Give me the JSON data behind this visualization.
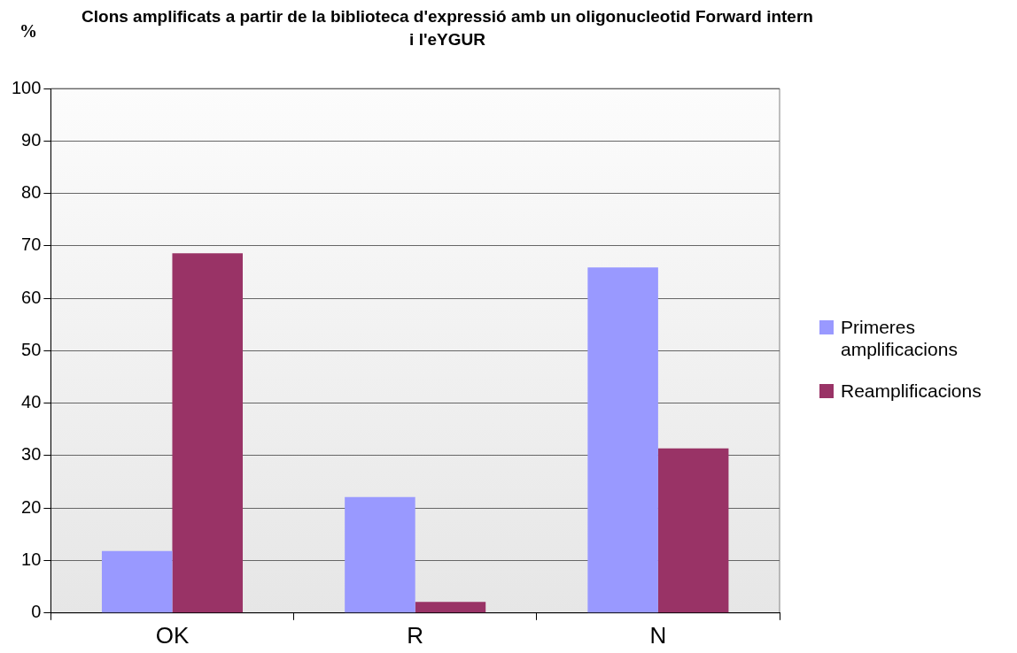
{
  "chart_data": {
    "type": "bar",
    "title": "Clons amplificats a partir de la biblioteca d'expressió amb un oligonucleotid Forward intern i l'eYGUR",
    "ylabel": "%",
    "categories": [
      "OK",
      "R",
      "N"
    ],
    "series": [
      {
        "name": "Primeres amplificacions",
        "color": "#9999ff",
        "values": [
          11.8,
          22.1,
          65.9
        ]
      },
      {
        "name": "Reamplificacions",
        "color": "#993366",
        "values": [
          68.6,
          2.1,
          31.4
        ]
      }
    ],
    "ylim": [
      0,
      100
    ],
    "yticks": [
      0,
      10,
      20,
      30,
      40,
      50,
      60,
      70,
      80,
      90,
      100
    ],
    "grid": "y",
    "legend": "right"
  }
}
